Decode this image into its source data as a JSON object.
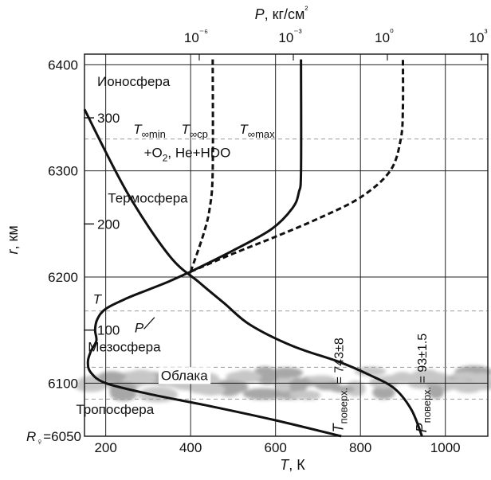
{
  "chart_data": {
    "type": "line",
    "axes": {
      "bottom": {
        "label_var": "T",
        "label_unit": ", К",
        "range": [
          150,
          1100
        ],
        "ticks": [
          {
            "value": 200,
            "label": "200"
          },
          {
            "value": 400,
            "label": "400"
          },
          {
            "value": 600,
            "label": "600"
          },
          {
            "value": 800,
            "label": "800"
          },
          {
            "value": 1000,
            "label": "1000"
          }
        ]
      },
      "left": {
        "label_var": "r",
        "label_unit": ", км",
        "range": [
          6050,
          6410
        ],
        "ticks": [
          {
            "value": 6050,
            "label": "R♀=6050"
          },
          {
            "value": 6100,
            "label": "6100"
          },
          {
            "value": 6200,
            "label": "6200"
          },
          {
            "value": 6300,
            "label": "6300"
          },
          {
            "value": 6400,
            "label": "6400"
          }
        ]
      },
      "inner_altitude": {
        "ticks": [
          {
            "value": 100,
            "label": "100"
          },
          {
            "value": 200,
            "label": "200"
          },
          {
            "value": 300,
            "label": "300"
          }
        ]
      },
      "top": {
        "label_var": "P",
        "label_unit": ", кг/см²",
        "scale": "log",
        "ticks": [
          {
            "exp": -6,
            "label": "10⁻⁶"
          },
          {
            "exp": -3,
            "label": "10⁻³"
          },
          {
            "exp": 0,
            "label": "10⁰"
          },
          {
            "exp": 3,
            "label": "10³"
          }
        ]
      }
    },
    "layer_boundaries_km": [
      6085,
      6115,
      6168,
      6330
    ],
    "series": [
      {
        "name": "T",
        "style": "solid",
        "label_pos": [
          170,
          6175
        ],
        "points": [
          [
            755,
            6050
          ],
          [
            600,
            6065
          ],
          [
            450,
            6078
          ],
          [
            300,
            6090
          ],
          [
            200,
            6100
          ],
          [
            165,
            6110
          ],
          [
            158,
            6120
          ],
          [
            165,
            6130
          ],
          [
            178,
            6140
          ],
          [
            175,
            6150
          ],
          [
            180,
            6160
          ],
          [
            200,
            6170
          ],
          [
            250,
            6180
          ],
          [
            300,
            6188
          ],
          [
            350,
            6196
          ],
          [
            400,
            6205
          ]
        ]
      },
      {
        "name": "T∞min",
        "style": "dashed",
        "label_pos": [
          265,
          6335
        ],
        "points": [
          [
            400,
            6205
          ],
          [
            430,
            6240
          ],
          [
            445,
            6265
          ],
          [
            452,
            6300
          ],
          [
            452,
            6405
          ]
        ]
      },
      {
        "name": "T∞ср",
        "style": "solid",
        "label_pos": [
          378,
          6335
        ],
        "points": [
          [
            400,
            6205
          ],
          [
            500,
            6225
          ],
          [
            590,
            6245
          ],
          [
            640,
            6265
          ],
          [
            655,
            6280
          ],
          [
            660,
            6300
          ],
          [
            660,
            6405
          ]
        ]
      },
      {
        "name": "T∞max",
        "style": "dashed",
        "label_pos": [
          515,
          6335
        ],
        "points": [
          [
            400,
            6205
          ],
          [
            500,
            6222
          ],
          [
            600,
            6238
          ],
          [
            700,
            6255
          ],
          [
            800,
            6275
          ],
          [
            870,
            6300
          ],
          [
            895,
            6330
          ],
          [
            900,
            6360
          ],
          [
            900,
            6405
          ]
        ]
      },
      {
        "name": "P",
        "style": "solid",
        "label_pos": [
          268,
          6148
        ],
        "points": [
          [
            150,
            6358
          ],
          [
            250,
            6280
          ],
          [
            350,
            6220
          ],
          [
            420,
            6195
          ],
          [
            480,
            6175
          ],
          [
            540,
            6155
          ],
          [
            640,
            6135
          ],
          [
            750,
            6120
          ],
          [
            820,
            6108
          ],
          [
            880,
            6095
          ],
          [
            920,
            6075
          ],
          [
            945,
            6050
          ]
        ]
      }
    ],
    "surface_labels": [
      {
        "var": "T",
        "sub": "поверх.",
        "text": " = 743±8",
        "anchor": [
          752,
          6052
        ]
      },
      {
        "var": "P",
        "sub": "поверх.",
        "text": " = 93±1.5",
        "anchor": [
          948,
          6052
        ]
      }
    ],
    "regions": [
      {
        "text": "Ионосфера",
        "pos": [
          180,
          6380
        ]
      },
      {
        "text": "+O",
        "sub": "2",
        "tail": ", He+HDO",
        "pos": [
          290,
          6313
        ]
      },
      {
        "text": "Термосфера",
        "pos": [
          205,
          6270
        ]
      },
      {
        "text": "Мезосфера",
        "pos": [
          158,
          6130
        ]
      },
      {
        "text": "Облака",
        "pos": [
          330,
          6103
        ]
      },
      {
        "text": "Тропосфера",
        "pos": [
          130,
          6071
        ]
      }
    ]
  }
}
